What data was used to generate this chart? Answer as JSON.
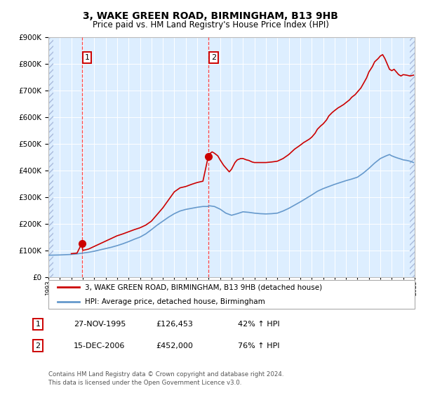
{
  "title": "3, WAKE GREEN ROAD, BIRMINGHAM, B13 9HB",
  "subtitle": "Price paid vs. HM Land Registry's House Price Index (HPI)",
  "legend_line1": "3, WAKE GREEN ROAD, BIRMINGHAM, B13 9HB (detached house)",
  "legend_line2": "HPI: Average price, detached house, Birmingham",
  "footer": "Contains HM Land Registry data © Crown copyright and database right 2024.\nThis data is licensed under the Open Government Licence v3.0.",
  "sale1_label": "1",
  "sale1_date": "27-NOV-1995",
  "sale1_price": "£126,453",
  "sale1_hpi": "42% ↑ HPI",
  "sale2_label": "2",
  "sale2_date": "15-DEC-2006",
  "sale2_price": "£452,000",
  "sale2_hpi": "76% ↑ HPI",
  "sale1_year": 1995.92,
  "sale1_value": 126453,
  "sale2_year": 2006.96,
  "sale2_value": 452000,
  "red_line_color": "#cc0000",
  "blue_line_color": "#6699cc",
  "bg_color": "#ddeeff",
  "hatch_color": "#aabbcc",
  "dashed_line_color": "#ff4444",
  "ylim_max": 900000,
  "xlim_min": 1993,
  "xlim_max": 2025,
  "red_hpi_data": [
    [
      1995.0,
      88000
    ],
    [
      1995.5,
      90000
    ],
    [
      1995.92,
      126453
    ],
    [
      1996.0,
      100000
    ],
    [
      1996.5,
      105000
    ],
    [
      1997.0,
      115000
    ],
    [
      1997.5,
      125000
    ],
    [
      1998.0,
      135000
    ],
    [
      1998.5,
      145000
    ],
    [
      1999.0,
      155000
    ],
    [
      1999.5,
      162000
    ],
    [
      2000.0,
      170000
    ],
    [
      2000.5,
      178000
    ],
    [
      2001.0,
      185000
    ],
    [
      2001.5,
      195000
    ],
    [
      2002.0,
      210000
    ],
    [
      2002.5,
      235000
    ],
    [
      2003.0,
      260000
    ],
    [
      2003.5,
      290000
    ],
    [
      2004.0,
      320000
    ],
    [
      2004.5,
      335000
    ],
    [
      2005.0,
      340000
    ],
    [
      2005.5,
      348000
    ],
    [
      2006.0,
      355000
    ],
    [
      2006.5,
      360000
    ],
    [
      2006.96,
      452000
    ],
    [
      2007.0,
      460000
    ],
    [
      2007.3,
      470000
    ],
    [
      2007.5,
      465000
    ],
    [
      2007.8,
      455000
    ],
    [
      2008.0,
      440000
    ],
    [
      2008.3,
      420000
    ],
    [
      2008.5,
      410000
    ],
    [
      2008.8,
      395000
    ],
    [
      2009.0,
      405000
    ],
    [
      2009.3,
      430000
    ],
    [
      2009.5,
      440000
    ],
    [
      2009.8,
      445000
    ],
    [
      2010.0,
      445000
    ],
    [
      2010.3,
      440000
    ],
    [
      2010.5,
      438000
    ],
    [
      2010.8,
      432000
    ],
    [
      2011.0,
      430000
    ],
    [
      2011.5,
      430000
    ],
    [
      2012.0,
      430000
    ],
    [
      2012.5,
      432000
    ],
    [
      2013.0,
      435000
    ],
    [
      2013.5,
      445000
    ],
    [
      2014.0,
      460000
    ],
    [
      2014.5,
      480000
    ],
    [
      2015.0,
      495000
    ],
    [
      2015.3,
      505000
    ],
    [
      2015.5,
      510000
    ],
    [
      2015.8,
      518000
    ],
    [
      2016.0,
      525000
    ],
    [
      2016.3,
      540000
    ],
    [
      2016.5,
      555000
    ],
    [
      2016.8,
      568000
    ],
    [
      2017.0,
      575000
    ],
    [
      2017.3,
      590000
    ],
    [
      2017.5,
      605000
    ],
    [
      2017.8,
      618000
    ],
    [
      2018.0,
      625000
    ],
    [
      2018.3,
      635000
    ],
    [
      2018.5,
      640000
    ],
    [
      2018.8,
      648000
    ],
    [
      2019.0,
      655000
    ],
    [
      2019.3,
      665000
    ],
    [
      2019.5,
      675000
    ],
    [
      2019.8,
      685000
    ],
    [
      2020.0,
      695000
    ],
    [
      2020.3,
      710000
    ],
    [
      2020.5,
      725000
    ],
    [
      2020.8,
      748000
    ],
    [
      2021.0,
      770000
    ],
    [
      2021.3,
      790000
    ],
    [
      2021.5,
      808000
    ],
    [
      2021.8,
      820000
    ],
    [
      2022.0,
      830000
    ],
    [
      2022.2,
      835000
    ],
    [
      2022.4,
      820000
    ],
    [
      2022.6,
      800000
    ],
    [
      2022.8,
      780000
    ],
    [
      2023.0,
      775000
    ],
    [
      2023.2,
      780000
    ],
    [
      2023.4,
      770000
    ],
    [
      2023.6,
      760000
    ],
    [
      2023.8,
      755000
    ],
    [
      2024.0,
      760000
    ],
    [
      2024.3,
      758000
    ],
    [
      2024.6,
      755000
    ],
    [
      2024.9,
      758000
    ]
  ],
  "blue_hpi_data": [
    [
      1993.0,
      82000
    ],
    [
      1993.5,
      82500
    ],
    [
      1994.0,
      83000
    ],
    [
      1994.5,
      84000
    ],
    [
      1995.0,
      85000
    ],
    [
      1995.5,
      87000
    ],
    [
      1996.0,
      90000
    ],
    [
      1996.5,
      93000
    ],
    [
      1997.0,
      97000
    ],
    [
      1997.5,
      102000
    ],
    [
      1998.0,
      107000
    ],
    [
      1998.5,
      112000
    ],
    [
      1999.0,
      118000
    ],
    [
      1999.5,
      125000
    ],
    [
      2000.0,
      133000
    ],
    [
      2000.5,
      142000
    ],
    [
      2001.0,
      150000
    ],
    [
      2001.5,
      162000
    ],
    [
      2002.0,
      178000
    ],
    [
      2002.5,
      195000
    ],
    [
      2003.0,
      210000
    ],
    [
      2003.5,
      225000
    ],
    [
      2004.0,
      238000
    ],
    [
      2004.5,
      248000
    ],
    [
      2005.0,
      254000
    ],
    [
      2005.5,
      258000
    ],
    [
      2006.0,
      262000
    ],
    [
      2006.5,
      265000
    ],
    [
      2006.96,
      265000
    ],
    [
      2007.0,
      268000
    ],
    [
      2007.5,
      265000
    ],
    [
      2008.0,
      255000
    ],
    [
      2008.5,
      240000
    ],
    [
      2009.0,
      232000
    ],
    [
      2009.5,
      238000
    ],
    [
      2010.0,
      245000
    ],
    [
      2010.5,
      243000
    ],
    [
      2011.0,
      240000
    ],
    [
      2011.5,
      238000
    ],
    [
      2012.0,
      237000
    ],
    [
      2012.5,
      238000
    ],
    [
      2013.0,
      240000
    ],
    [
      2013.5,
      248000
    ],
    [
      2014.0,
      258000
    ],
    [
      2014.5,
      270000
    ],
    [
      2015.0,
      282000
    ],
    [
      2015.5,
      295000
    ],
    [
      2016.0,
      308000
    ],
    [
      2016.5,
      322000
    ],
    [
      2017.0,
      332000
    ],
    [
      2017.5,
      340000
    ],
    [
      2018.0,
      348000
    ],
    [
      2018.5,
      355000
    ],
    [
      2019.0,
      362000
    ],
    [
      2019.5,
      368000
    ],
    [
      2020.0,
      375000
    ],
    [
      2020.5,
      390000
    ],
    [
      2021.0,
      408000
    ],
    [
      2021.5,
      428000
    ],
    [
      2022.0,
      445000
    ],
    [
      2022.5,
      455000
    ],
    [
      2022.8,
      460000
    ],
    [
      2023.0,
      455000
    ],
    [
      2023.3,
      450000
    ],
    [
      2023.5,
      447000
    ],
    [
      2023.8,
      443000
    ],
    [
      2024.0,
      440000
    ],
    [
      2024.3,
      438000
    ],
    [
      2024.6,
      435000
    ],
    [
      2024.9,
      430000
    ]
  ]
}
